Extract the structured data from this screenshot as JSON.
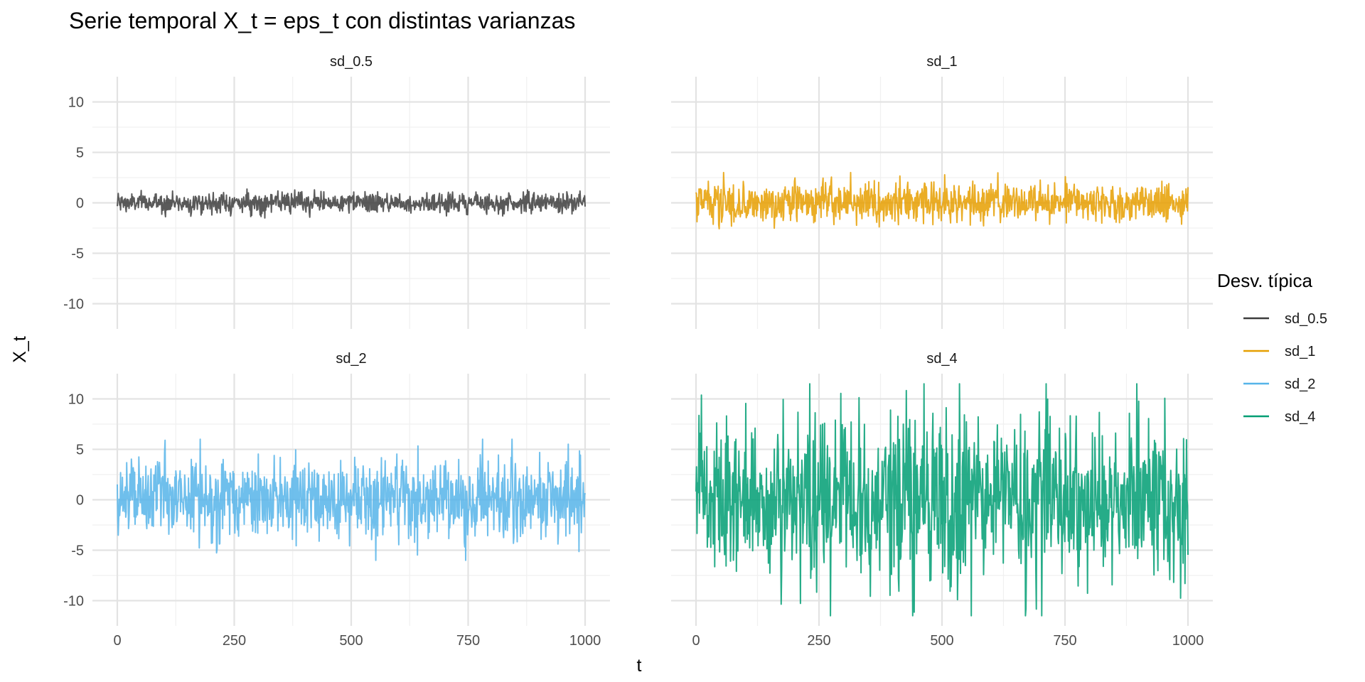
{
  "chart_data": {
    "type": "line",
    "title": "Serie temporal X_t = eps_t con distintas varianzas",
    "xlabel": "t",
    "ylabel": "X_t",
    "xlim": [
      0,
      1000
    ],
    "ylim": [
      -12.5,
      12.5
    ],
    "x_ticks": [
      0,
      250,
      500,
      750,
      1000
    ],
    "y_ticks": [
      10,
      5,
      0,
      -5,
      -10
    ],
    "grid": true,
    "legend": {
      "title": "Desv. típica",
      "position": "right",
      "entries": [
        "sd_0.5",
        "sd_1",
        "sd_2",
        "sd_4"
      ]
    },
    "series": [
      {
        "name": "sd_0.5",
        "sd": 0.5,
        "color": "#3d3d3d",
        "n_points": 1000,
        "approx_min": -1.5,
        "approx_max": 1.8
      },
      {
        "name": "sd_1",
        "sd": 1,
        "color": "#E69F00",
        "n_points": 1000,
        "approx_min": -3,
        "approx_max": 3
      },
      {
        "name": "sd_2",
        "sd": 2,
        "color": "#56B4E9",
        "n_points": 1000,
        "approx_min": -6,
        "approx_max": 6
      },
      {
        "name": "sd_4",
        "sd": 4,
        "color": "#009E73",
        "n_points": 1000,
        "approx_min": -11.5,
        "approx_max": 11.5
      }
    ]
  }
}
